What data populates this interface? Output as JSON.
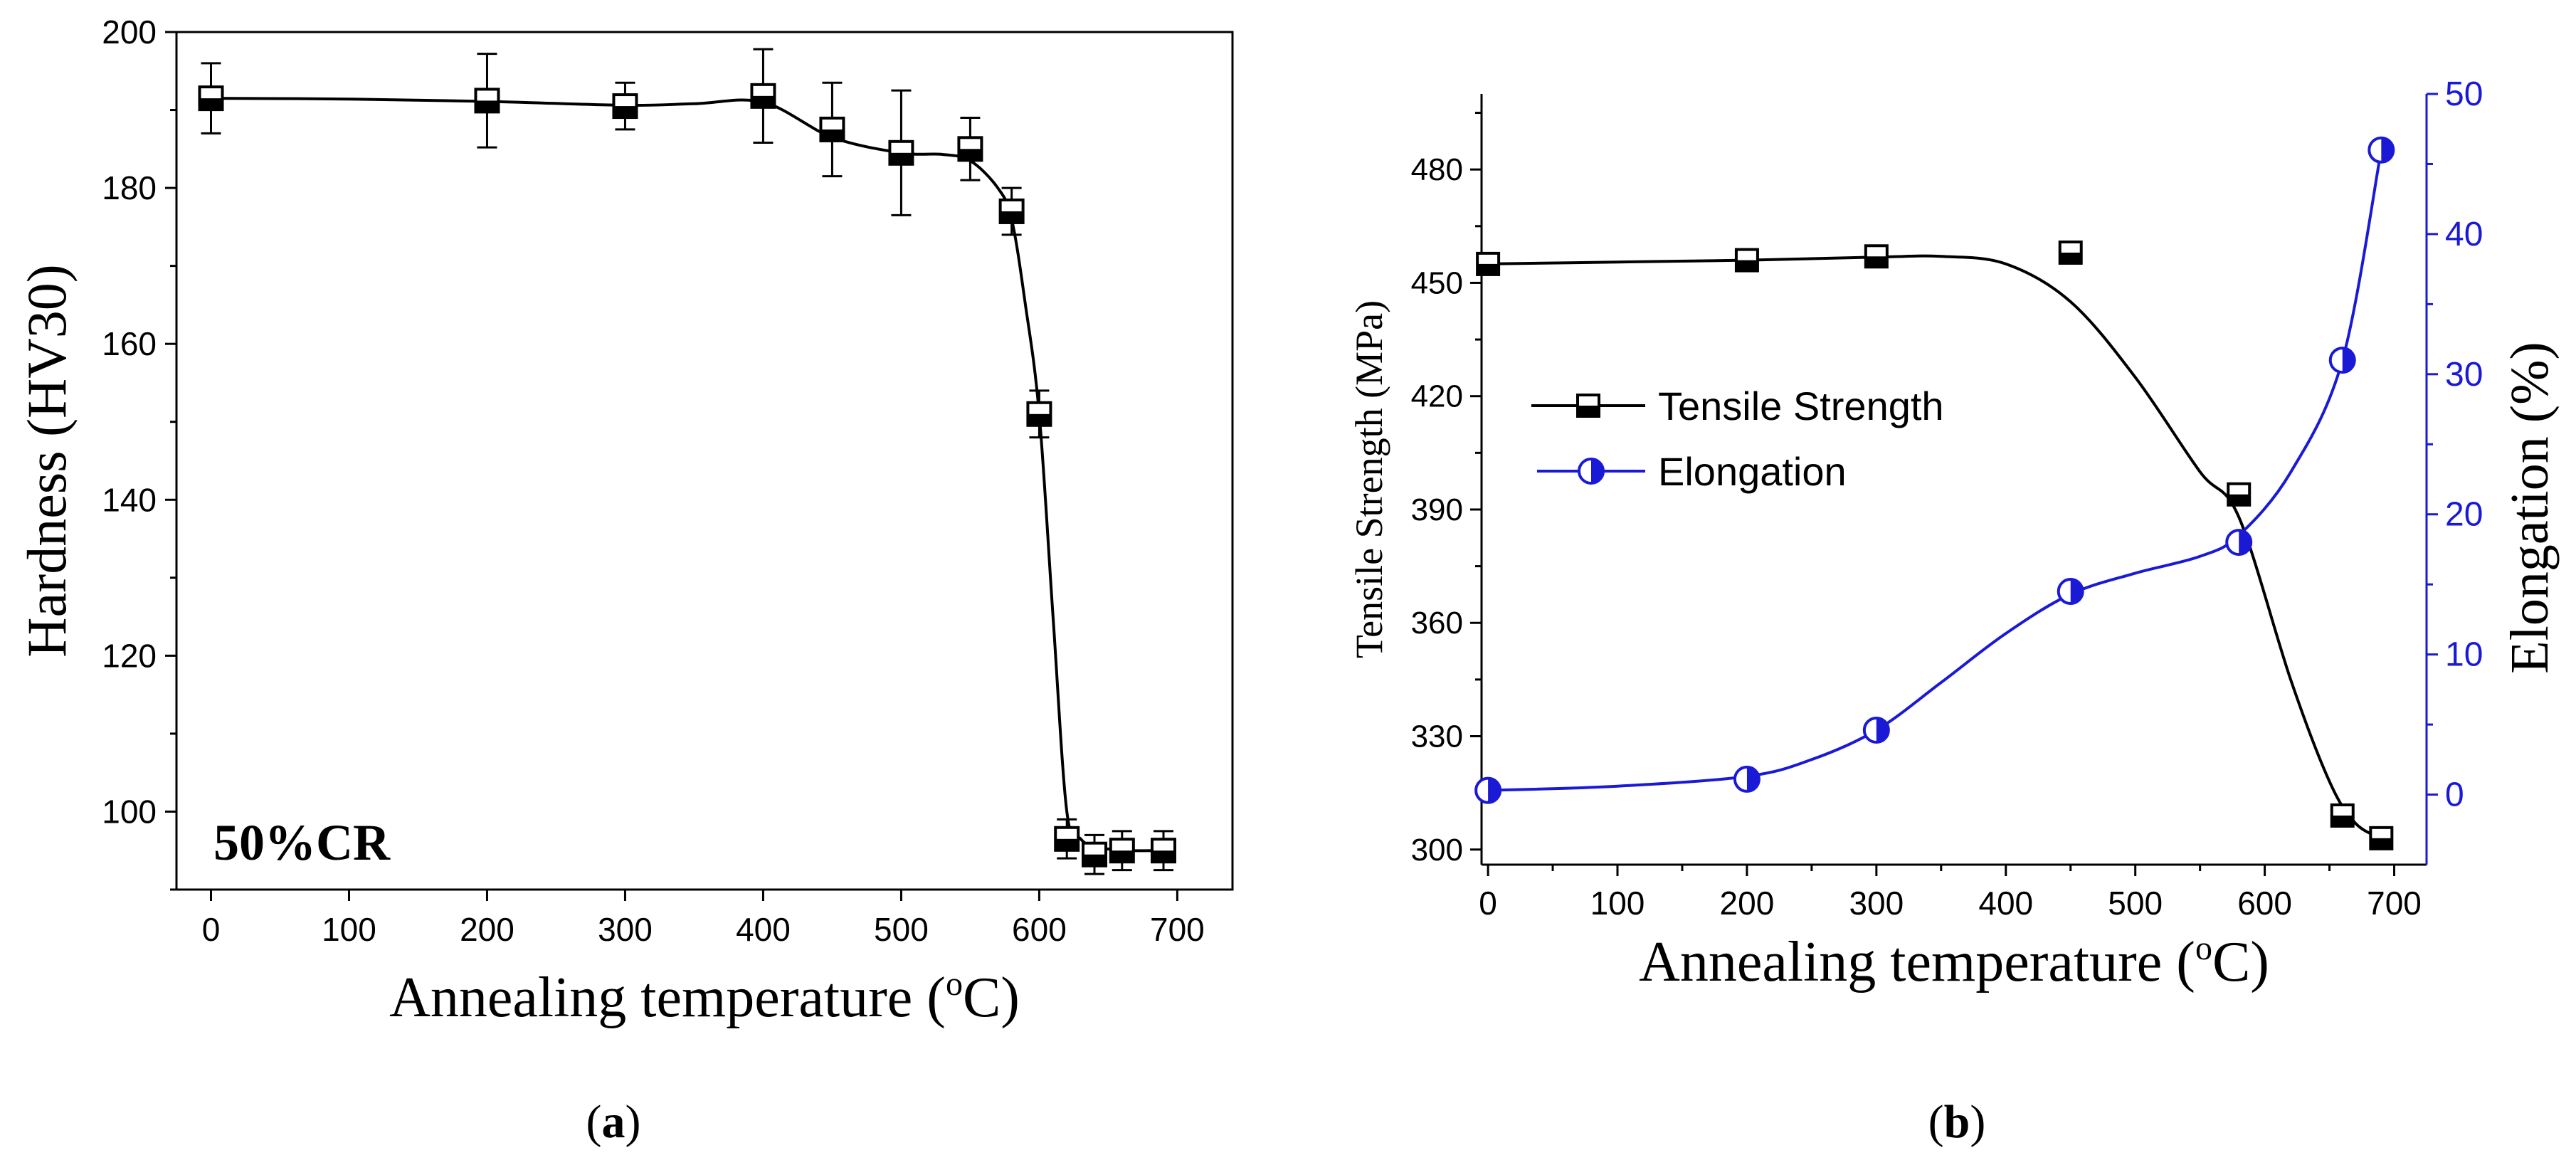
{
  "colors": {
    "black": "#000000",
    "blue": "#1a1ad6",
    "background": "#ffffff"
  },
  "panel_labels": {
    "a": {
      "open": "(",
      "letter": "a",
      "close": ")"
    },
    "b": {
      "open": "(",
      "letter": "b",
      "close": ")"
    }
  },
  "chart_data": [
    {
      "id": "a",
      "type": "line",
      "title": "",
      "xlabel": "Annealing temperature (",
      "xlabel_sup": "o",
      "xlabel_end": "C)",
      "ylabel": "Hardness (HV30)",
      "xlim": [
        -25,
        740
      ],
      "ylim": [
        90,
        200
      ],
      "xticks": [
        0,
        100,
        200,
        300,
        400,
        500,
        600,
        700
      ],
      "yticks": [
        100,
        120,
        140,
        160,
        180,
        200
      ],
      "annotation": "50%CR",
      "series": [
        {
          "name": "Hardness",
          "marker": "half-square",
          "x": [
            0,
            200,
            300,
            400,
            450,
            500,
            550,
            580,
            600,
            620,
            640,
            660,
            690
          ],
          "y": [
            191.5,
            191.2,
            190.5,
            191.8,
            187.5,
            184.5,
            185,
            177,
            151,
            96.5,
            94.5,
            95,
            95
          ],
          "err": [
            4.5,
            6,
            3,
            6,
            6,
            8,
            4,
            3,
            3,
            2.5,
            2.5,
            2.5,
            2.5
          ],
          "curve_x": [
            0,
            100,
            200,
            300,
            350,
            400,
            450,
            500,
            530,
            550,
            570,
            580,
            590,
            600,
            610,
            620,
            630,
            640,
            650,
            660,
            690
          ],
          "curve_y": [
            191.5,
            191.4,
            191.1,
            190.6,
            190.8,
            191.0,
            186.5,
            184.5,
            184.3,
            183.5,
            180,
            176,
            165,
            151,
            125,
            100,
            96.5,
            95.5,
            95.2,
            95,
            95
          ]
        }
      ]
    },
    {
      "id": "b",
      "type": "line",
      "title": "",
      "xlabel": "Annealing temperature (",
      "xlabel_sup": "o",
      "xlabel_end": "C)",
      "ylabel": "Tensile Strength (MPa)",
      "y2label": "Elongation (%)",
      "xlim": [
        -5,
        725
      ],
      "ylim": [
        296,
        500
      ],
      "y2lim": [
        -5,
        50
      ],
      "xticks": [
        0,
        100,
        200,
        300,
        400,
        500,
        600,
        700
      ],
      "yticks": [
        300,
        330,
        360,
        390,
        420,
        450,
        480
      ],
      "y2ticks": [
        0,
        10,
        20,
        30,
        40,
        50
      ],
      "legend": {
        "position": "center-left"
      },
      "series": [
        {
          "name": "Tensile Strength",
          "axis": "left",
          "marker": "half-square",
          "x": [
            0,
            200,
            300,
            450,
            580,
            660,
            690
          ],
          "y": [
            455,
            456,
            457,
            458,
            394,
            309,
            303
          ],
          "curve_x": [
            0,
            100,
            200,
            300,
            350,
            400,
            450,
            500,
            550,
            580,
            620,
            650,
            670,
            690
          ],
          "curve_y": [
            455,
            455.5,
            456,
            456.8,
            457,
            455,
            445,
            425,
            400,
            388,
            345,
            318,
            307,
            303
          ]
        },
        {
          "name": "Elongation",
          "axis": "right",
          "marker": "half-circle",
          "x": [
            0,
            200,
            300,
            450,
            580,
            660,
            690
          ],
          "y": [
            0.3,
            1.1,
            4.6,
            14.5,
            18,
            31,
            46
          ],
          "curve_x": [
            0,
            100,
            200,
            250,
            300,
            350,
            400,
            450,
            500,
            550,
            580,
            620,
            660,
            690
          ],
          "curve_y": [
            0.3,
            0.6,
            1.3,
            2.5,
            4.6,
            8,
            11.5,
            14.3,
            15.8,
            17,
            18.5,
            23,
            31,
            46
          ]
        }
      ]
    }
  ]
}
